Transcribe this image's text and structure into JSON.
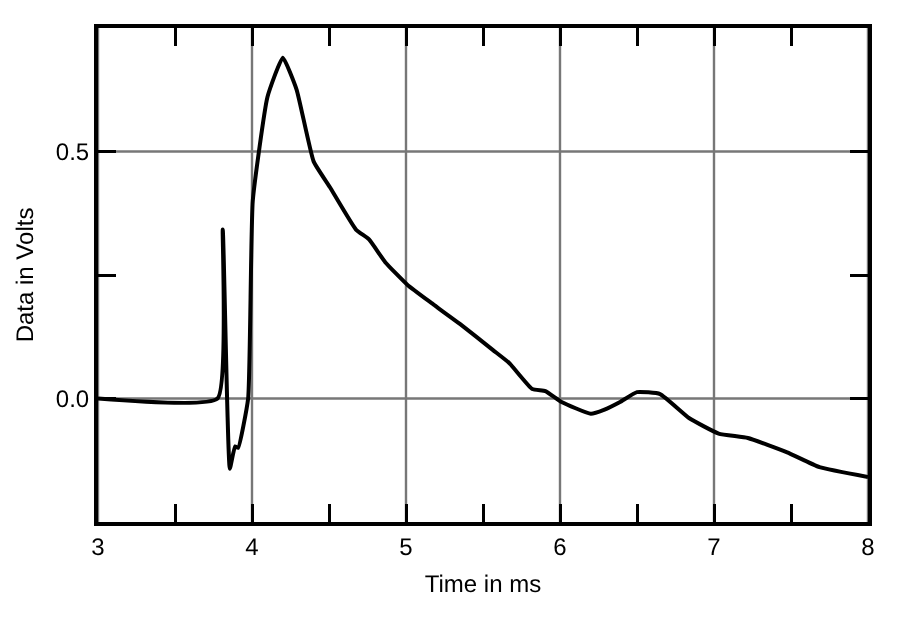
{
  "chart_data": {
    "type": "line",
    "xlabel": "Time in ms",
    "ylabel": "Data in Volts",
    "x": [
      3,
      3.776,
      3.81,
      3.856,
      3.89,
      3.91,
      3.975,
      4.005,
      4.1,
      4.2,
      4.29,
      4.4,
      4.505,
      4.675,
      4.76,
      4.865,
      5.01,
      5.18,
      5.205,
      5.35,
      5.565,
      5.67,
      5.82,
      5.905,
      6.01,
      6.2,
      6.285,
      6.39,
      6.5,
      6.65,
      6.84,
      7.03,
      7.22,
      7.475,
      7.685,
      8.0
    ],
    "values": [
      0,
      0,
      0.342,
      -0.142,
      -0.097,
      -0.1,
      0.0,
      0.4,
      0.61,
      0.69,
      0.625,
      0.48,
      0.428,
      0.342,
      0.322,
      0.276,
      0.23,
      0.19,
      0.184,
      0.151,
      0.098,
      0.072,
      0.019,
      0.015,
      -0.007,
      -0.031,
      -0.023,
      -0.007,
      0.013,
      0.009,
      -0.04,
      -0.071,
      -0.08,
      -0.109,
      -0.139,
      -0.159
    ],
    "color": "#000000",
    "xlim": [
      3,
      8
    ],
    "ylim": [
      -0.25,
      0.75
    ],
    "xticks": [
      3,
      {
        "value": 3.5,
        "label": null
      },
      4,
      {
        "value": 4.5,
        "label": null
      },
      5,
      {
        "value": 5.5,
        "label": null
      },
      6,
      {
        "value": 6.5,
        "label": null
      },
      7,
      {
        "value": 7.5,
        "label": null
      },
      8
    ],
    "yticks": [
      {
        "value": 0,
        "label": "0.0"
      },
      {
        "value": 0.25,
        "label": null
      },
      0.5
    ],
    "grid": true,
    "marker": "none",
    "line_style": "solid"
  }
}
